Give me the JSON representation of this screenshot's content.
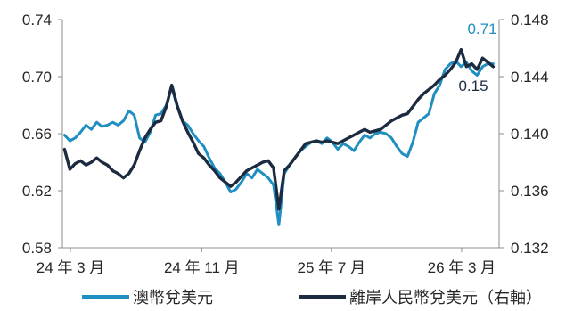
{
  "chart_data": {
    "type": "line",
    "legend": "bottom",
    "grid": false,
    "xlim": [
      "2024-02-15",
      "2026-05-10"
    ],
    "x_ticks": [
      "24 年 3 月",
      "24 年 11 月",
      "25 年 7 月",
      "26 年 3 月"
    ],
    "y_left": {
      "ylim": [
        0.58,
        0.74
      ],
      "ticks": [
        "0.74",
        "0.70",
        "0.66",
        "0.62",
        "0.58"
      ]
    },
    "y_right": {
      "ylim": [
        0.132,
        0.148
      ],
      "ticks": [
        "0.148",
        "0.144",
        "0.140",
        "0.136",
        "0.132"
      ]
    },
    "x": [
      "2024-02-19",
      "2024-02-29",
      "2024-03-10",
      "2024-03-20",
      "2024-03-30",
      "2024-04-09",
      "2024-04-19",
      "2024-04-29",
      "2024-05-09",
      "2024-05-19",
      "2024-05-29",
      "2024-06-08",
      "2024-06-18",
      "2024-06-28",
      "2024-07-08",
      "2024-07-18",
      "2024-07-28",
      "2024-08-07",
      "2024-08-17",
      "2024-08-27",
      "2024-09-06",
      "2024-09-16",
      "2024-09-26",
      "2024-10-06",
      "2024-10-16",
      "2024-10-26",
      "2024-11-05",
      "2024-11-15",
      "2024-11-25",
      "2024-12-05",
      "2024-12-15",
      "2024-12-25",
      "2025-01-04",
      "2025-01-14",
      "2025-01-24",
      "2025-02-03",
      "2025-02-13",
      "2025-02-23",
      "2025-03-05",
      "2025-03-15",
      "2025-03-25",
      "2025-04-04",
      "2025-04-14",
      "2025-04-24",
      "2025-05-04",
      "2025-05-14",
      "2025-05-24",
      "2025-06-03",
      "2025-06-13",
      "2025-06-23",
      "2025-07-03",
      "2025-07-13",
      "2025-07-23",
      "2025-08-02",
      "2025-08-12",
      "2025-08-22",
      "2025-09-01",
      "2025-09-11",
      "2025-09-21",
      "2025-10-01",
      "2025-10-11",
      "2025-10-21",
      "2025-10-31",
      "2025-11-10",
      "2025-11-20",
      "2025-11-30",
      "2025-12-10",
      "2025-12-20",
      "2025-12-30",
      "2026-01-09",
      "2026-01-19",
      "2026-01-29",
      "2026-02-08",
      "2026-02-18",
      "2026-02-28",
      "2026-03-10",
      "2026-03-20",
      "2026-03-30",
      "2026-04-09",
      "2026-04-19",
      "2026-04-29"
    ],
    "series": [
      {
        "name": "澳幣兌美元",
        "axis": "left",
        "color": "#1f8ec1",
        "values": [
          0.659,
          0.655,
          0.657,
          0.661,
          0.666,
          0.663,
          0.668,
          0.665,
          0.666,
          0.668,
          0.666,
          0.669,
          0.676,
          0.673,
          0.657,
          0.654,
          0.661,
          0.673,
          0.674,
          0.68,
          0.693,
          0.679,
          0.669,
          0.666,
          0.66,
          0.655,
          0.651,
          0.643,
          0.636,
          0.632,
          0.626,
          0.619,
          0.621,
          0.626,
          0.632,
          0.629,
          0.635,
          0.632,
          0.629,
          0.624,
          0.596,
          0.632,
          0.638,
          0.643,
          0.648,
          0.651,
          0.654,
          0.655,
          0.653,
          0.657,
          0.654,
          0.649,
          0.653,
          0.651,
          0.648,
          0.654,
          0.659,
          0.657,
          0.66,
          0.661,
          0.66,
          0.657,
          0.651,
          0.646,
          0.644,
          0.654,
          0.668,
          0.671,
          0.674,
          0.688,
          0.694,
          0.705,
          0.709,
          0.711,
          0.707,
          0.71,
          0.704,
          0.701,
          0.707,
          0.709,
          0.709
        ]
      },
      {
        "name": "離岸人民幣兌美元（右軸）",
        "axis": "right",
        "color": "#1c2b3f",
        "values": [
          0.1389,
          0.1375,
          0.1379,
          0.1381,
          0.1378,
          0.138,
          0.1383,
          0.138,
          0.1378,
          0.1374,
          0.1372,
          0.1369,
          0.1372,
          0.1378,
          0.1388,
          0.1397,
          0.1403,
          0.1408,
          0.1409,
          0.1419,
          0.1434,
          0.142,
          0.1409,
          0.1401,
          0.1394,
          0.1386,
          0.1383,
          0.1378,
          0.1374,
          0.1369,
          0.1366,
          0.1363,
          0.1366,
          0.137,
          0.1374,
          0.1376,
          0.1378,
          0.138,
          0.1381,
          0.1376,
          0.1347,
          0.1374,
          0.1378,
          0.1383,
          0.1388,
          0.1393,
          0.1394,
          0.1395,
          0.1394,
          0.1395,
          0.1394,
          0.1393,
          0.1395,
          0.1397,
          0.1399,
          0.1401,
          0.1403,
          0.1401,
          0.1402,
          0.1403,
          0.1406,
          0.1409,
          0.1411,
          0.1413,
          0.1414,
          0.1419,
          0.1424,
          0.1428,
          0.1431,
          0.1434,
          0.1438,
          0.1441,
          0.1445,
          0.145,
          0.1459,
          0.1447,
          0.1449,
          0.1445,
          0.1453,
          0.145,
          0.1447
        ]
      }
    ],
    "annotations": [
      {
        "text": "0.71",
        "series": 0
      },
      {
        "text": "0.15",
        "series": 1
      }
    ]
  }
}
